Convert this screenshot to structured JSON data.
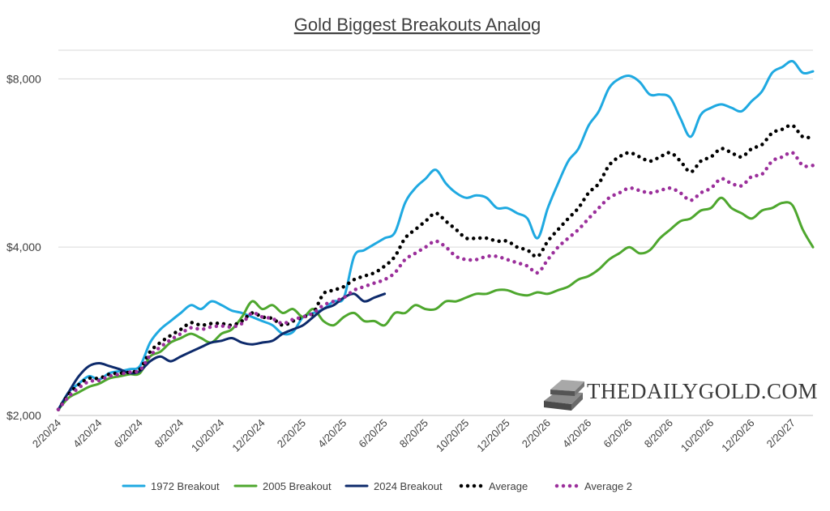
{
  "chart_data": {
    "type": "line",
    "title": "Gold Biggest Breakouts Analog",
    "xlabel": "",
    "ylabel": "",
    "y_scale": "log",
    "ylim": [
      2000,
      9000
    ],
    "y_ticks": [
      2000,
      4000,
      8000
    ],
    "y_tick_labels": [
      "$2,000",
      "$4,000",
      "$8,000"
    ],
    "x_tick_labels": [
      "2/20/24",
      "4/20/24",
      "6/20/24",
      "8/20/24",
      "10/20/24",
      "12/20/24",
      "2/20/25",
      "4/20/25",
      "6/20/25",
      "8/20/25",
      "10/20/25",
      "12/20/25",
      "2/20/26",
      "4/20/26",
      "6/20/26",
      "8/20/26",
      "10/20/26",
      "12/20/26",
      "2/20/27"
    ],
    "x_range_months": [
      0,
      37
    ],
    "legend_position": "bottom",
    "grid": "horizontal",
    "watermark": "THEDAILYGOLD.COM",
    "series": [
      {
        "name": "1972 Breakout",
        "color": "#1fa9e1",
        "style": "solid",
        "x": [
          0,
          0.5,
          1,
          1.5,
          2,
          2.5,
          3,
          3.5,
          4,
          4.5,
          5,
          5.5,
          6,
          6.5,
          7,
          7.5,
          8,
          8.5,
          9,
          9.5,
          10,
          10.5,
          11,
          11.5,
          12,
          12.5,
          13,
          13.5,
          14,
          14.5,
          15,
          15.5,
          16,
          16.5,
          17,
          17.5,
          18,
          18.5,
          19,
          19.5,
          20,
          20.5,
          21,
          21.5,
          22,
          22.5,
          23,
          23.5,
          24,
          24.5,
          25,
          25.5,
          26,
          26.5,
          27,
          27.5,
          28,
          28.5,
          29,
          29.5,
          30,
          30.5,
          31,
          31.5,
          32,
          32.5,
          33,
          33.5,
          34,
          34.5,
          35,
          35.5,
          36,
          36.5,
          37
        ],
        "values": [
          2050,
          2200,
          2280,
          2350,
          2320,
          2380,
          2400,
          2420,
          2450,
          2700,
          2850,
          2950,
          3050,
          3150,
          3100,
          3200,
          3150,
          3080,
          3050,
          3000,
          2950,
          2900,
          2800,
          2820,
          3000,
          3050,
          3100,
          3200,
          3250,
          3850,
          3950,
          4050,
          4150,
          4250,
          4800,
          5100,
          5300,
          5500,
          5200,
          5000,
          4900,
          4950,
          4900,
          4700,
          4700,
          4600,
          4500,
          4150,
          4700,
          5200,
          5700,
          6000,
          6600,
          7000,
          7700,
          8000,
          8100,
          7900,
          7500,
          7500,
          7400,
          6800,
          6300,
          6900,
          7100,
          7200,
          7100,
          7000,
          7300,
          7600,
          8200,
          8400,
          8600,
          8200,
          8250
        ]
      },
      {
        "name": "2005 Breakout",
        "color": "#4ea72e",
        "style": "solid",
        "x": [
          0,
          0.5,
          1,
          1.5,
          2,
          2.5,
          3,
          3.5,
          4,
          4.5,
          5,
          5.5,
          6,
          6.5,
          7,
          7.5,
          8,
          8.5,
          9,
          9.5,
          10,
          10.5,
          11,
          11.5,
          12,
          12.5,
          13,
          13.5,
          14,
          14.5,
          15,
          15.5,
          16,
          16.5,
          17,
          17.5,
          18,
          18.5,
          19,
          19.5,
          20,
          20.5,
          21,
          21.5,
          22,
          22.5,
          23,
          23.5,
          24,
          24.5,
          25,
          25.5,
          26,
          26.5,
          27,
          27.5,
          28,
          28.5,
          29,
          29.5,
          30,
          30.5,
          31,
          31.5,
          32,
          32.5,
          33,
          33.5,
          34,
          34.5,
          35,
          35.5,
          36,
          36.5,
          37
        ],
        "values": [
          2050,
          2150,
          2200,
          2250,
          2280,
          2330,
          2350,
          2370,
          2380,
          2550,
          2600,
          2700,
          2750,
          2800,
          2750,
          2700,
          2800,
          2850,
          3000,
          3200,
          3100,
          3150,
          3050,
          3100,
          3000,
          3100,
          2950,
          2900,
          3000,
          3050,
          2950,
          2950,
          2900,
          3050,
          3050,
          3150,
          3100,
          3100,
          3200,
          3200,
          3250,
          3300,
          3300,
          3350,
          3350,
          3300,
          3280,
          3320,
          3300,
          3350,
          3400,
          3500,
          3550,
          3650,
          3800,
          3900,
          4000,
          3900,
          3950,
          4150,
          4300,
          4450,
          4500,
          4650,
          4700,
          4900,
          4700,
          4600,
          4500,
          4650,
          4700,
          4800,
          4750,
          4300,
          4000
        ]
      },
      {
        "name": "2024 Breakout",
        "color": "#0d2a6b",
        "style": "solid",
        "x": [
          0,
          0.5,
          1,
          1.5,
          2,
          2.5,
          3,
          3.5,
          4,
          4.5,
          5,
          5.5,
          6,
          6.5,
          7,
          7.5,
          8,
          8.5,
          9,
          9.5,
          10,
          10.5,
          11,
          11.5,
          12,
          12.5,
          13,
          13.5,
          14,
          14.5,
          15,
          15.5,
          16
        ],
        "values": [
          2050,
          2200,
          2350,
          2450,
          2480,
          2450,
          2420,
          2380,
          2400,
          2500,
          2550,
          2500,
          2550,
          2600,
          2650,
          2700,
          2720,
          2750,
          2700,
          2680,
          2700,
          2720,
          2800,
          2850,
          2900,
          3000,
          3100,
          3150,
          3250,
          3300,
          3200,
          3250,
          3300
        ]
      },
      {
        "name": "Average",
        "color": "#000000",
        "style": "dotted",
        "x": [
          0,
          0.5,
          1,
          1.5,
          2,
          2.5,
          3,
          3.5,
          4,
          4.5,
          5,
          5.5,
          6,
          6.5,
          7,
          7.5,
          8,
          8.5,
          9,
          9.5,
          10,
          10.5,
          11,
          11.5,
          12,
          12.5,
          13,
          13.5,
          14,
          14.5,
          15,
          15.5,
          16,
          16.5,
          17,
          17.5,
          18,
          18.5,
          19,
          19.5,
          20,
          20.5,
          21,
          21.5,
          22,
          22.5,
          23,
          23.5,
          24,
          24.5,
          25,
          25.5,
          26,
          26.5,
          27,
          27.5,
          28,
          28.5,
          29,
          29.5,
          30,
          30.5,
          31,
          31.5,
          32,
          32.5,
          33,
          33.5,
          34,
          34.5,
          35,
          35.5,
          36,
          36.5,
          37
        ],
        "values": [
          2050,
          2180,
          2270,
          2330,
          2330,
          2370,
          2380,
          2390,
          2420,
          2600,
          2700,
          2780,
          2850,
          2930,
          2900,
          2920,
          2920,
          2900,
          2950,
          3050,
          3000,
          2980,
          2900,
          2950,
          3000,
          3050,
          3300,
          3350,
          3400,
          3500,
          3550,
          3600,
          3700,
          3850,
          4150,
          4300,
          4450,
          4600,
          4450,
          4300,
          4150,
          4150,
          4150,
          4100,
          4100,
          4000,
          3950,
          3850,
          4100,
          4300,
          4500,
          4700,
          5000,
          5200,
          5600,
          5800,
          5900,
          5800,
          5700,
          5800,
          5900,
          5700,
          5450,
          5700,
          5800,
          6000,
          5900,
          5800,
          6000,
          6100,
          6400,
          6500,
          6600,
          6300,
          6300
        ]
      },
      {
        "name": "Average 2",
        "color": "#9b2f9b",
        "style": "dotted",
        "x": [
          0,
          0.5,
          1,
          1.5,
          2,
          2.5,
          3,
          3.5,
          4,
          4.5,
          5,
          5.5,
          6,
          6.5,
          7,
          7.5,
          8,
          8.5,
          9,
          9.5,
          10,
          10.5,
          11,
          11.5,
          12,
          12.5,
          13,
          13.5,
          14,
          14.5,
          15,
          15.5,
          16,
          16.5,
          17,
          17.5,
          18,
          18.5,
          19,
          19.5,
          20,
          20.5,
          21,
          21.5,
          22,
          22.5,
          23,
          23.5,
          24,
          24.5,
          25,
          25.5,
          26,
          26.5,
          27,
          27.5,
          28,
          28.5,
          29,
          29.5,
          30,
          30.5,
          31,
          31.5,
          32,
          32.5,
          33,
          33.5,
          34,
          34.5,
          35,
          35.5,
          36,
          36.5,
          37
        ],
        "values": [
          2050,
          2160,
          2240,
          2300,
          2310,
          2350,
          2370,
          2390,
          2410,
          2560,
          2650,
          2730,
          2800,
          2870,
          2850,
          2880,
          2890,
          2880,
          2920,
          3050,
          3000,
          2980,
          2920,
          2970,
          3000,
          3050,
          3150,
          3200,
          3250,
          3350,
          3400,
          3450,
          3500,
          3600,
          3800,
          3900,
          4000,
          4100,
          4000,
          3850,
          3800,
          3800,
          3850,
          3850,
          3800,
          3750,
          3700,
          3600,
          3800,
          4000,
          4150,
          4300,
          4500,
          4700,
          4900,
          5000,
          5100,
          5050,
          5000,
          5050,
          5100,
          5000,
          4850,
          5000,
          5100,
          5300,
          5200,
          5150,
          5350,
          5400,
          5700,
          5800,
          5900,
          5600,
          5600
        ]
      }
    ]
  }
}
